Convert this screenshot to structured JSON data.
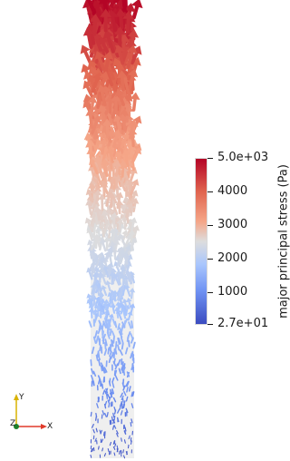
{
  "colorbar": {
    "title": "major principal stress (Pa)",
    "min": 27,
    "max": 5000,
    "ticks": [
      {
        "value": 5000,
        "label": "5.0e+03"
      },
      {
        "value": 4000,
        "label": "4000"
      },
      {
        "value": 3000,
        "label": "3000"
      },
      {
        "value": 2000,
        "label": "2000"
      },
      {
        "value": 1000,
        "label": "1000"
      },
      {
        "value": 27,
        "label": "2.7e+01"
      }
    ]
  },
  "orientation_axes": {
    "x_label": "X",
    "y_label": "Y",
    "z_label": "Z",
    "colors": {
      "x": "#e03a2a",
      "y": "#d9b200",
      "z": "#1c7f2a"
    }
  },
  "colormap": [
    "#3b4cc0",
    "#6f92f3",
    "#a9c6fd",
    "#dddddd",
    "#f5a688",
    "#e0654f",
    "#b40426"
  ]
}
